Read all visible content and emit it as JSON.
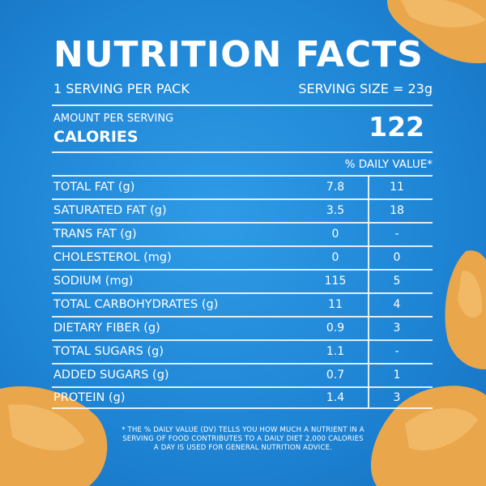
{
  "colors": {
    "background": "#1f86d6",
    "text": "#ffffff",
    "chip": "#e9a64a"
  },
  "header": {
    "title": "NUTRITION FACTS",
    "servings_per_pack": "1 SERVING PER PACK",
    "serving_size": "SERVING SIZE = 23g"
  },
  "calories": {
    "amount_label": "AMOUNT PER SERVING",
    "label": "CALORIES",
    "value": "122"
  },
  "table": {
    "dv_header": "% DAILY VALUE*",
    "rows": [
      {
        "name": "TOTAL FAT (g)",
        "amount": "7.8",
        "dv": "11"
      },
      {
        "name": "SATURATED FAT (g)",
        "amount": "3.5",
        "dv": "18"
      },
      {
        "name": "TRANS FAT (g)",
        "amount": "0",
        "dv": "-"
      },
      {
        "name": "CHOLESTEROL (mg)",
        "amount": "0",
        "dv": "0"
      },
      {
        "name": "SODIUM (mg)",
        "amount": "115",
        "dv": "5"
      },
      {
        "name": "TOTAL CARBOHYDRATES (g)",
        "amount": "11",
        "dv": "4"
      },
      {
        "name": "DIETARY FIBER (g)",
        "amount": "0.9",
        "dv": "3"
      },
      {
        "name": "TOTAL SUGARS (g)",
        "amount": "1.1",
        "dv": "-"
      },
      {
        "name": "ADDED SUGARS (g)",
        "amount": "0.7",
        "dv": "1"
      },
      {
        "name": "PROTEIN (g)",
        "amount": "1.4",
        "dv": "3"
      }
    ]
  },
  "footnote": "* THE % DAILY VALUE (DV) TELLS YOU HOW MUCH A NUTRIENT IN A SERVING OF FOOD CONTRIBUTES TO A DAILY DIET 2,000 CALORIES A DAY IS USED FOR GENERAL NUTRITION ADVICE."
}
